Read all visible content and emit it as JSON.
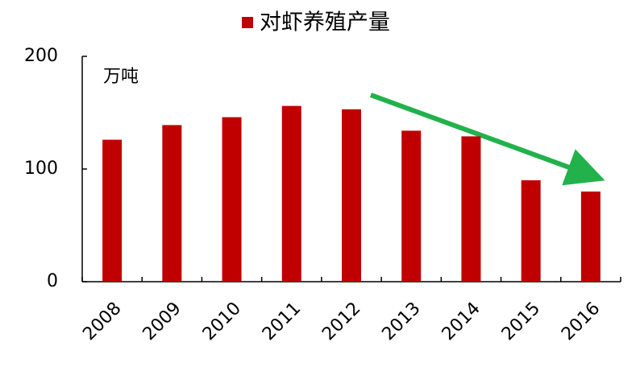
{
  "chart_data": {
    "type": "bar",
    "legend_label": "对虾养殖产量",
    "y_unit": "万吨",
    "categories": [
      "2008",
      "2009",
      "2010",
      "2011",
      "2012",
      "2013",
      "2014",
      "2015",
      "2016"
    ],
    "values": [
      126,
      139,
      146,
      156,
      153,
      134,
      129,
      90,
      80
    ],
    "color": "#c00000",
    "ylim": [
      0,
      200
    ],
    "yticks": [
      0,
      100,
      200
    ],
    "grid": false
  }
}
